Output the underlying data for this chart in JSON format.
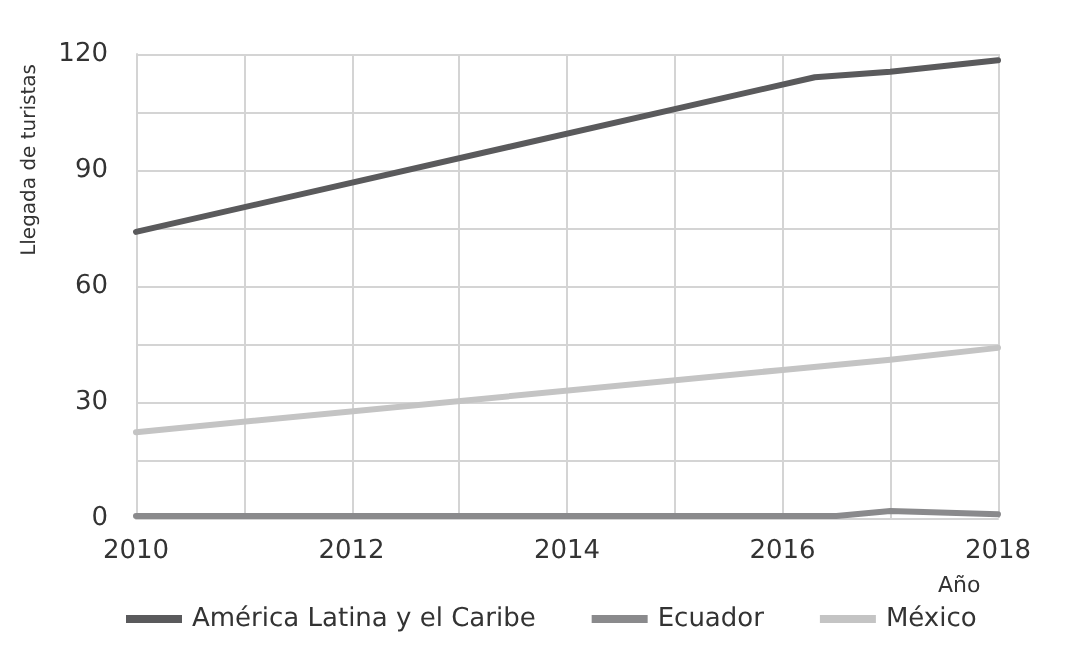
{
  "chart_data": {
    "type": "line",
    "xlabel": "Año",
    "ylabel": "Llegada de turistas",
    "xlim": [
      2010,
      2018
    ],
    "xticks": [
      2010,
      {
        "value": 2011,
        "label": null
      },
      2012,
      {
        "value": 2013,
        "label": null
      },
      2014,
      {
        "value": 2015,
        "label": null
      },
      2016,
      {
        "value": 2017,
        "label": null
      },
      2018
    ],
    "ylim": [
      0,
      120
    ],
    "yticks": [
      0,
      {
        "value": 15,
        "label": null
      },
      30,
      {
        "value": 45,
        "label": null
      },
      60,
      {
        "value": 75,
        "label": null
      },
      90,
      {
        "value": 105,
        "label": null
      },
      120
    ],
    "grid": true,
    "legend": "bottom left",
    "marker": "none",
    "line_style": "solid",
    "series": [
      {
        "name": "América Latina y el Caribe",
        "color": "#5a5a5c",
        "x": [
          2010,
          2016.3,
          2017,
          2018
        ],
        "values": [
          74,
          114,
          115.4,
          118.4
        ]
      },
      {
        "name": "Ecuador",
        "color": "#8a8a8c",
        "x": [
          2010,
          2016.5,
          2017,
          2018
        ],
        "values": [
          0.5,
          0.5,
          1.8,
          1
        ]
      },
      {
        "name": "México",
        "color": "#c4c4c4",
        "x": [
          2010,
          2016,
          2017,
          2018
        ],
        "values": [
          22.2,
          38.3,
          40.9,
          44
        ]
      }
    ]
  }
}
